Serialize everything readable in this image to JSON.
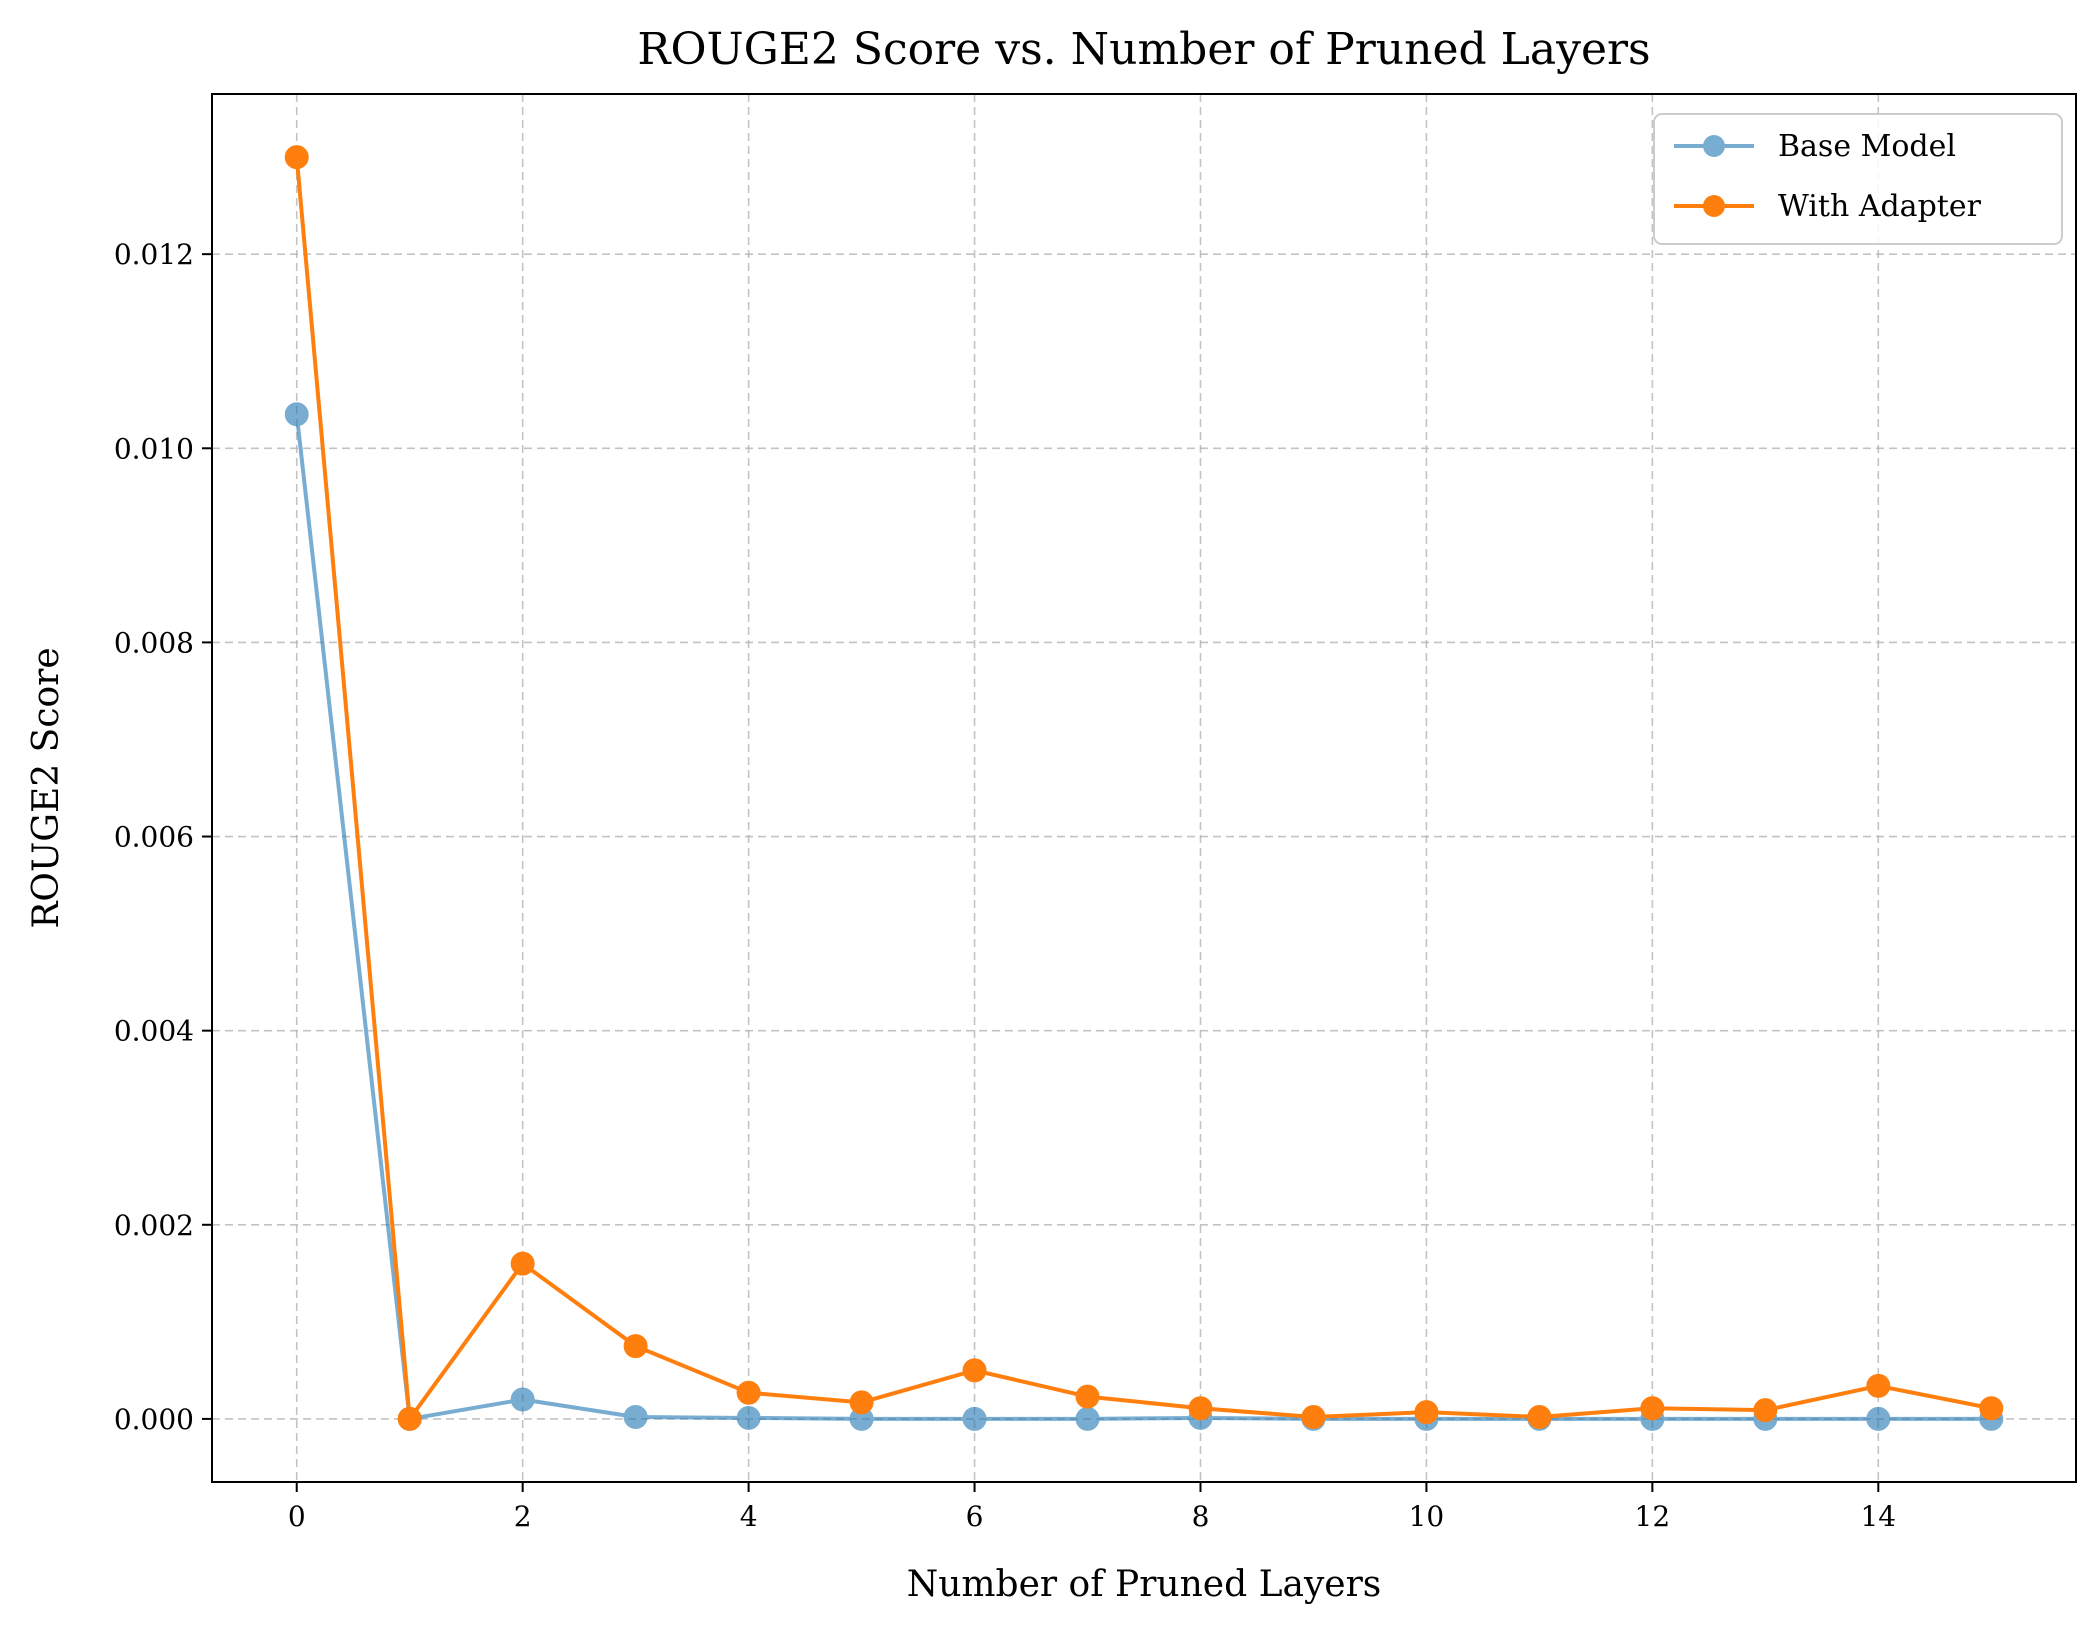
{
  "chart_data": {
    "type": "line",
    "title": "ROUGE2 Score vs. Number of Pruned Layers",
    "xlabel": "Number of Pruned Layers",
    "ylabel": "ROUGE2 Score",
    "x": [
      0,
      1,
      2,
      3,
      4,
      5,
      6,
      7,
      8,
      9,
      10,
      11,
      12,
      13,
      14,
      15
    ],
    "xlim": [
      -0.75,
      15.75
    ],
    "ylim": [
      -0.00065,
      0.01365
    ],
    "xticks": [
      0,
      2,
      4,
      6,
      8,
      10,
      12,
      14
    ],
    "xtick_labels": [
      "0",
      "2",
      "4",
      "6",
      "8",
      "10",
      "12",
      "14"
    ],
    "yticks": [
      0,
      0.002,
      0.004,
      0.006,
      0.008,
      0.01,
      0.012
    ],
    "ytick_labels": [
      "0.000",
      "0.002",
      "0.004",
      "0.006",
      "0.008",
      "0.010",
      "0.012"
    ],
    "grid": true,
    "legend_position": "top-right",
    "series": [
      {
        "name": "Base Model",
        "color": "#1f77b4",
        "alpha": 0.6,
        "values": [
          0.01035,
          0.0,
          0.0002,
          2e-05,
          1e-05,
          0.0,
          0.0,
          0.0,
          1e-05,
          0.0,
          0.0,
          0.0,
          0.0,
          0.0,
          0.0,
          0.0
        ]
      },
      {
        "name": "With Adapter",
        "color": "#ff7f0e",
        "alpha": 1.0,
        "values": [
          0.013,
          0.0,
          0.0016,
          0.00075,
          0.00027,
          0.00017,
          0.0005,
          0.00023,
          0.00011,
          2e-05,
          7e-05,
          2e-05,
          0.00011,
          9e-05,
          0.00034,
          0.00011
        ]
      }
    ]
  }
}
